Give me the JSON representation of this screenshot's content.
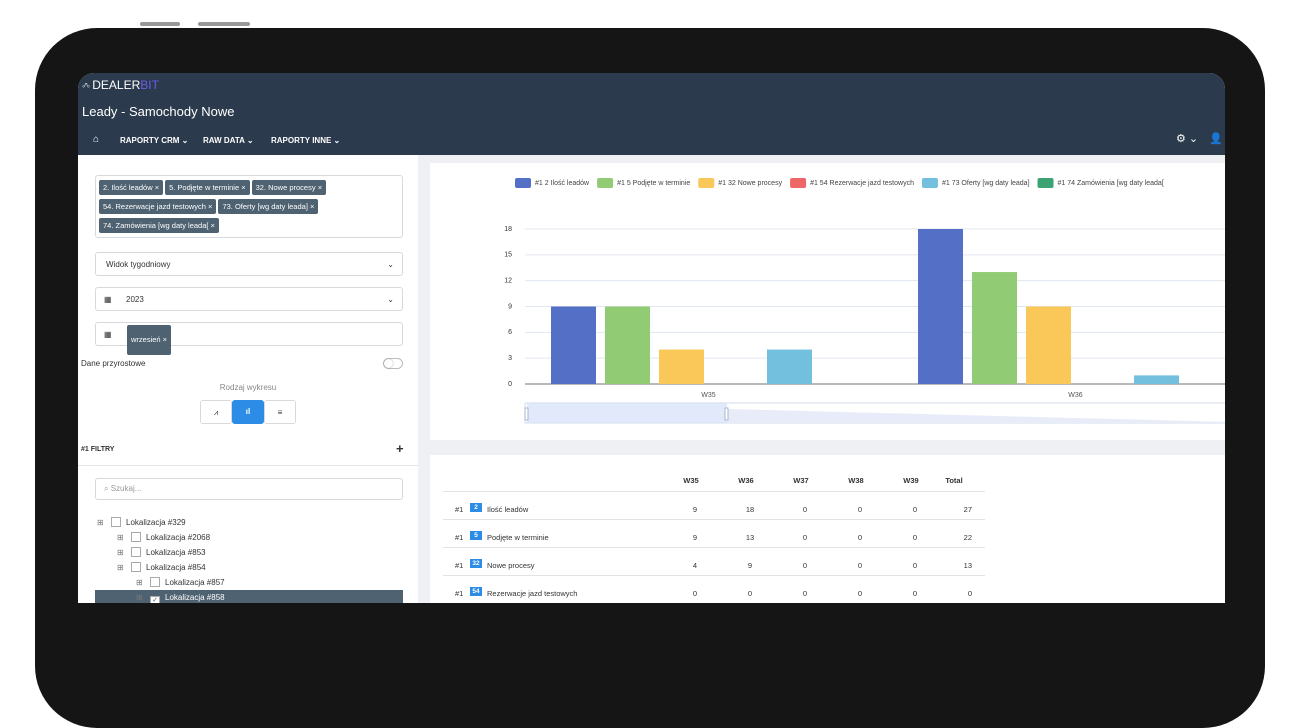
{
  "header": {
    "logo_main": "DEALER",
    "logo_accent": "BIT",
    "title": "Leady - Samochody Nowe",
    "nav": [
      "RAPORTY CRM",
      "RAW DATA",
      "RAPORTY INNE"
    ]
  },
  "sidebar": {
    "tags": [
      "2. Ilość leadów ×",
      "5. Podjęte w terminie ×",
      "32. Nowe procesy ×",
      "54. Rezerwacje jazd testowych ×",
      "73. Oferty [wg daty leada] ×",
      "74. Zamówienia [wg daty leada[ ×"
    ],
    "view_select": "Widok tygodniowy",
    "year_select": "2023",
    "month_tag": "wrzesień ×",
    "incremental_label": "Dane przyrostowe",
    "chart_type_label": "Rodzaj wykresu",
    "filters_title": "#1 FILTRY",
    "search_placeholder": "Szukaj...",
    "tree": [
      "Lokalizacja #329",
      "Lokalizacja #2068",
      "Lokalizacja #853",
      "Lokalizacja #854",
      "Lokalizacja #857",
      "Lokalizacja #858"
    ]
  },
  "chart_data": {
    "type": "bar",
    "categories": [
      "W35",
      "W36"
    ],
    "series": [
      {
        "name": "#1 2 Ilość leadów",
        "color": "#5470c6",
        "values": [
          9,
          18
        ]
      },
      {
        "name": "#1 5 Podjęte w terminie",
        "color": "#91cc75",
        "values": [
          9,
          13
        ]
      },
      {
        "name": "#1 32 Nowe procesy",
        "color": "#fac858",
        "values": [
          4,
          9
        ]
      },
      {
        "name": "#1 54 Rezerwacje jazd testowych",
        "color": "#ee6666",
        "values": [
          0,
          0
        ]
      },
      {
        "name": "#1 73 Oferty [wg daty leada]",
        "color": "#73c0de",
        "values": [
          4,
          1
        ]
      },
      {
        "name": "#1 74 Zamówienia [wg daty leada[",
        "color": "#3ba272",
        "values": [
          0,
          0
        ]
      }
    ],
    "ylim": [
      0,
      18
    ],
    "yticks": [
      0,
      3,
      6,
      9,
      12,
      15,
      18
    ],
    "grid": true
  },
  "table": {
    "columns": [
      "W35",
      "W36",
      "W37",
      "W38",
      "W39",
      "Total"
    ],
    "rows": [
      {
        "prefix": "#1",
        "badge": "2",
        "label": "Ilość leadów",
        "values": [
          "9",
          "18",
          "0",
          "0",
          "0",
          "27"
        ]
      },
      {
        "prefix": "#1",
        "badge": "5",
        "label": "Podjęte w terminie",
        "values": [
          "9",
          "13",
          "0",
          "0",
          "0",
          "22"
        ]
      },
      {
        "prefix": "#1",
        "badge": "32",
        "label": "Nowe procesy",
        "values": [
          "4",
          "9",
          "0",
          "0",
          "0",
          "13"
        ]
      },
      {
        "prefix": "#1",
        "badge": "54",
        "label": "Rezerwacje jazd testowych",
        "values": [
          "0",
          "0",
          "0",
          "0",
          "0",
          "0"
        ]
      }
    ]
  }
}
